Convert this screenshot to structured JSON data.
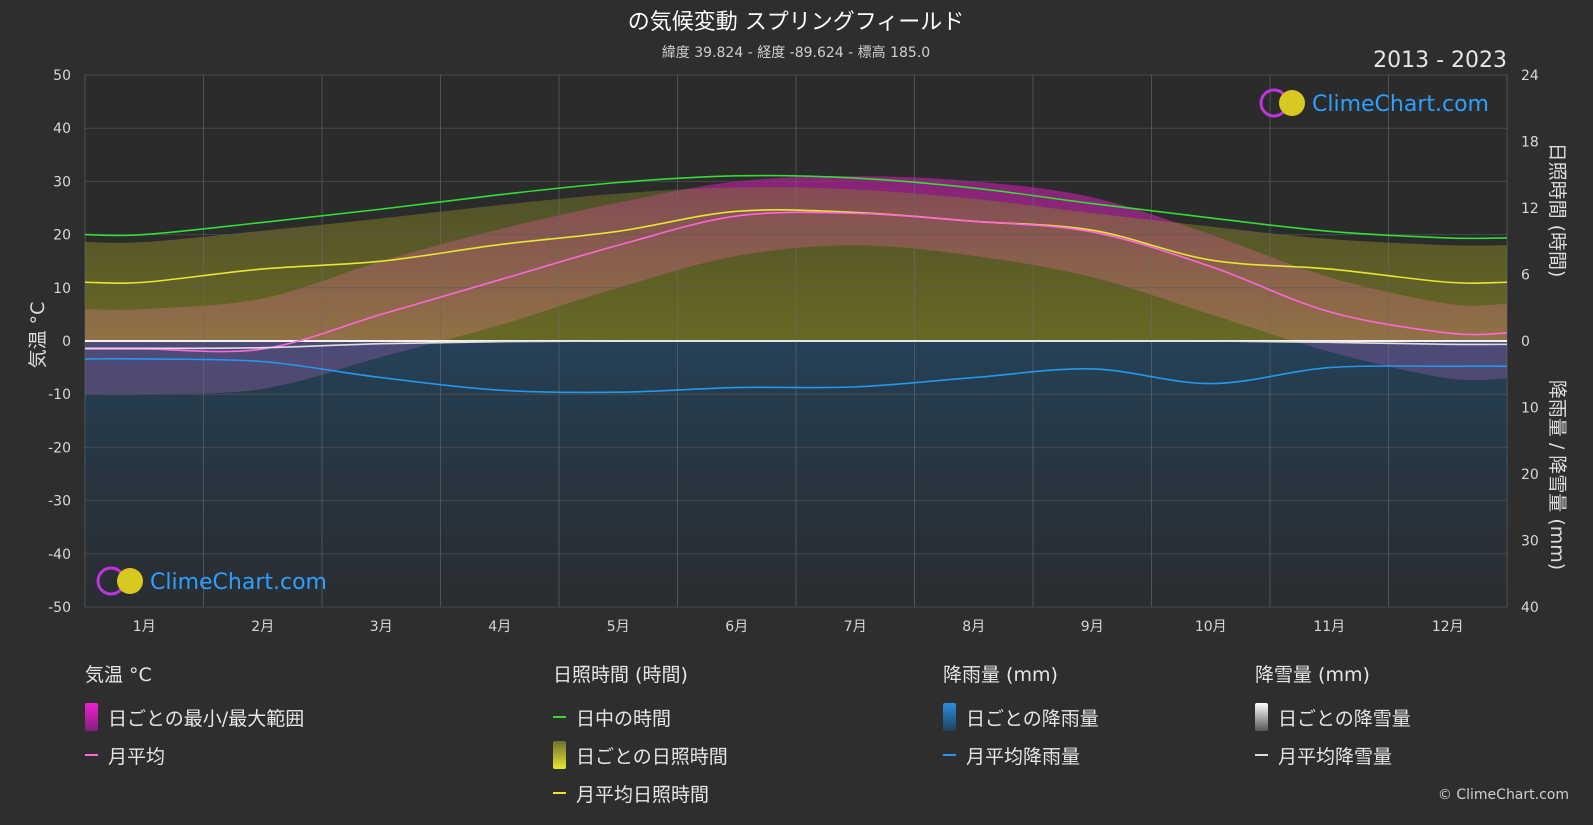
{
  "header": {
    "title": "の気候変動 スプリングフィールド",
    "subtitle": "緯度 39.824 - 経度 -89.624 - 標高 185.0",
    "years": "2013 - 2023"
  },
  "brand": {
    "name": "ClimeChart.com",
    "copyright": "© ClimeChart.com"
  },
  "chart_data": {
    "type": "area",
    "categories": [
      "1月",
      "2月",
      "3月",
      "4月",
      "5月",
      "6月",
      "7月",
      "8月",
      "9月",
      "10月",
      "11月",
      "12月"
    ],
    "axes": {
      "left": {
        "label": "気温 °C",
        "min": -50,
        "max": 50,
        "ticks": [
          50,
          40,
          30,
          20,
          10,
          0,
          -10,
          -20,
          -30,
          -40,
          -50
        ]
      },
      "right_top": {
        "label": "日照時間 (時間)",
        "min": 0,
        "max": 24,
        "ticks": [
          24,
          18,
          12,
          6,
          0
        ]
      },
      "right_bottom": {
        "label": "降雨量 / 降雪量 (mm)",
        "min": 0,
        "max": 40,
        "ticks": [
          0,
          10,
          20,
          30,
          40
        ]
      }
    },
    "series": [
      {
        "name": "日中の時間",
        "axis": "hours",
        "color": "#33dd33",
        "values": [
          9.6,
          10.7,
          11.9,
          13.2,
          14.3,
          14.9,
          14.7,
          13.8,
          12.4,
          11.1,
          9.9,
          9.3
        ]
      },
      {
        "name": "月平均日照時間",
        "axis": "hours",
        "color": "#e6e633",
        "values": [
          5.3,
          6.5,
          7.2,
          8.7,
          9.9,
          11.7,
          11.6,
          10.8,
          10.0,
          7.3,
          6.5,
          5.3
        ]
      },
      {
        "name": "月平均",
        "axis": "temp",
        "color": "#ff66dd",
        "values": [
          -1.5,
          -1.5,
          5.0,
          11.5,
          18.0,
          23.5,
          24.0,
          22.5,
          20.5,
          14.0,
          5.5,
          1.5
        ]
      },
      {
        "name": "月平均降雨量",
        "axis": "rain",
        "color": "#2299ee",
        "values": [
          2.7,
          3.1,
          5.5,
          7.4,
          7.7,
          7.0,
          6.9,
          5.5,
          4.2,
          6.4,
          4.0,
          3.8
        ]
      },
      {
        "name": "月平均降雪量",
        "axis": "rain",
        "color": "#dddddd",
        "values": [
          1.1,
          1.0,
          0.4,
          0.1,
          0,
          0,
          0,
          0,
          0,
          0,
          0.2,
          0.5
        ]
      }
    ],
    "daily_range": {
      "name": "日ごとの最小/最大範囲",
      "min": [
        -10,
        -9,
        -3,
        3,
        10,
        16,
        18,
        16,
        12,
        5,
        -2,
        -7
      ],
      "max": [
        6,
        8,
        15,
        21,
        26,
        30,
        31,
        30,
        27,
        20,
        12,
        7
      ]
    },
    "legend_placement": "bottom",
    "grid": true
  },
  "legend": {
    "temp": {
      "title": "気温 °C",
      "items": [
        "日ごとの最小/最大範囲",
        "月平均"
      ]
    },
    "sun": {
      "title": "日照時間 (時間)",
      "items": [
        "日中の時間",
        "日ごとの日照時間",
        "月平均日照時間"
      ]
    },
    "rain": {
      "title": "降雨量 (mm)",
      "items": [
        "日ごとの降雨量",
        "月平均降雨量"
      ]
    },
    "snow": {
      "title": "降雪量 (mm)",
      "items": [
        "日ごとの降雪量",
        "月平均降雪量"
      ]
    }
  },
  "colors": {
    "background": "#2e2e2e",
    "temp_range": "#e020c0",
    "sun_fill": "#9a9a28",
    "rain_fill": "#1f5a8a",
    "snow_fill": "#bbbbbb"
  }
}
